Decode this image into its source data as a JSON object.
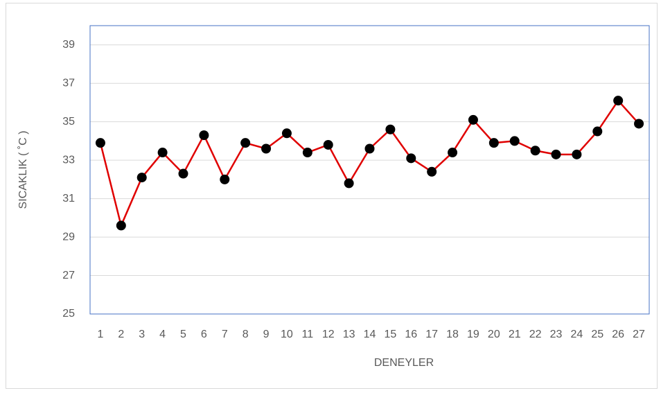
{
  "chart_data": {
    "type": "line",
    "xlabel": "DENEYLER",
    "ylabel": "SICAKLIK ( ˚C )",
    "categories": [
      "1",
      "2",
      "3",
      "4",
      "5",
      "6",
      "7",
      "8",
      "9",
      "10",
      "11",
      "12",
      "13",
      "14",
      "15",
      "16",
      "17",
      "18",
      "19",
      "20",
      "21",
      "22",
      "23",
      "24",
      "25",
      "26",
      "27"
    ],
    "series": [
      {
        "name": "SICAKLIK",
        "color": "#e00000",
        "marker_color": "#000000",
        "values": [
          33.9,
          29.6,
          32.1,
          33.4,
          32.3,
          34.3,
          32.0,
          33.9,
          33.6,
          34.4,
          33.4,
          33.8,
          31.8,
          33.6,
          34.6,
          33.1,
          32.4,
          33.4,
          35.1,
          33.9,
          34.0,
          33.5,
          33.3,
          33.3,
          34.5,
          36.1,
          34.9
        ]
      }
    ],
    "ylim": [
      25,
      40
    ],
    "yticks": [
      25,
      27,
      29,
      31,
      33,
      35,
      37,
      39
    ],
    "grid": true,
    "legend": false
  }
}
